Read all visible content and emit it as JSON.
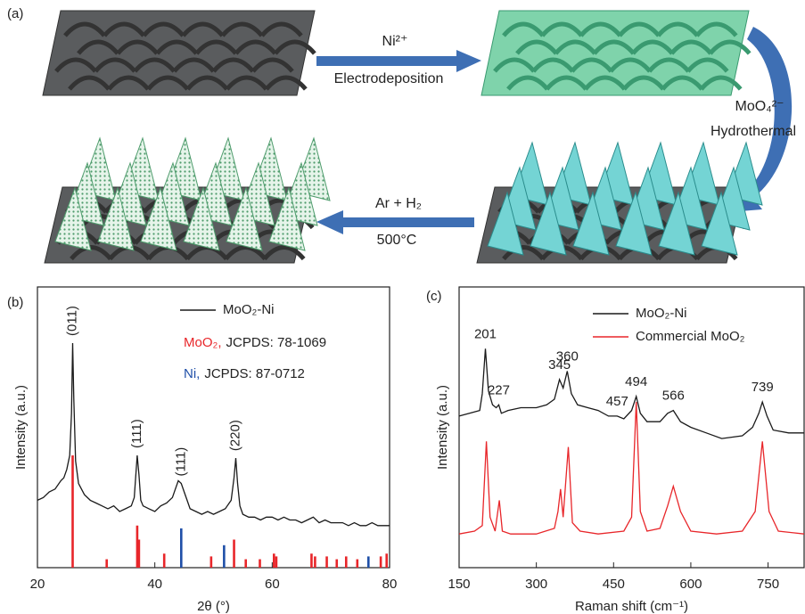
{
  "figure": {
    "panel_a": {
      "label": "(a)",
      "steps": [
        {
          "top": "Ni²⁺",
          "bottom": "Electrodeposition"
        },
        {
          "top": "MoO₄²⁻",
          "bottom": "Hydrothermal"
        },
        {
          "top": "Ar + H₂",
          "bottom": "500°C"
        }
      ]
    }
  },
  "chart_data": [
    {
      "type": "line",
      "panel": "(b)",
      "x_label": "2θ (°)",
      "y_label": "Intensity (a.u.)",
      "xlim": [
        20,
        80
      ],
      "xticks": [
        20,
        40,
        60,
        80
      ],
      "ylim": [
        0,
        100
      ],
      "series": [
        {
          "name": "MoO₂-Ni",
          "color": "#1a1a1a",
          "x": [
            20,
            21,
            22,
            23,
            24,
            24.5,
            25,
            25.5,
            25.8,
            26,
            26.2,
            26.5,
            27,
            28,
            29,
            30,
            31,
            32,
            33,
            34,
            35,
            36,
            36.5,
            37,
            37.3,
            37.6,
            38,
            39,
            40,
            41,
            42,
            43,
            43.5,
            44,
            44.5,
            45,
            45.5,
            46,
            47,
            48,
            49,
            50,
            51,
            52,
            53,
            53.5,
            53.8,
            54.1,
            54.5,
            55,
            56,
            57,
            58,
            59,
            60,
            61,
            62,
            63,
            64,
            65,
            66,
            67,
            68,
            69,
            70,
            71,
            72,
            73,
            74,
            75,
            76,
            77,
            78,
            79,
            80
          ],
          "values": [
            24,
            25,
            27,
            28,
            31,
            32,
            35,
            40,
            55,
            80,
            60,
            38,
            30,
            26,
            24,
            23,
            22,
            21,
            22,
            20,
            21,
            22,
            25,
            40,
            33,
            24,
            22,
            21,
            20,
            22,
            23,
            25,
            28,
            31,
            30,
            27,
            24,
            21,
            20,
            19,
            20,
            19,
            20,
            21,
            24,
            32,
            39,
            30,
            22,
            19,
            18,
            18,
            17,
            18,
            18,
            17,
            18,
            17,
            17,
            16,
            17,
            18,
            16,
            17,
            16,
            16,
            16,
            15,
            16,
            15,
            15,
            16,
            15,
            15,
            15
          ]
        }
      ],
      "references": [
        {
          "name": "MoO₂,",
          "label": "JCPDS: 78-1069",
          "color": "#e8262a",
          "x": [
            26,
            31.8,
            37,
            37.3,
            41.6,
            49.6,
            53.5,
            55.5,
            57.9,
            60.3,
            60.7,
            66.7,
            67.3,
            69.3,
            71,
            72.6,
            74.5,
            78.5,
            79.5
          ],
          "values": [
            40,
            3,
            15,
            10,
            5,
            4,
            10,
            3,
            3,
            5,
            4,
            5,
            4,
            4,
            3,
            4,
            3,
            4,
            5
          ]
        },
        {
          "name": "Ni,",
          "label": "JCPDS: 87-0712",
          "color": "#1f4fa8",
          "x": [
            44.5,
            51.8,
            76.4
          ],
          "values": [
            14,
            8,
            4
          ]
        }
      ],
      "annotations": [
        {
          "text": "(011)",
          "x": 26,
          "color": "#e8262a"
        },
        {
          "text": "(111)",
          "x": 37,
          "color": "#e8262a"
        },
        {
          "text": "(111)",
          "x": 44.5,
          "color": "#1f4fa8"
        },
        {
          "text": "(220)",
          "x": 53.8,
          "color": "#e8262a"
        }
      ]
    },
    {
      "type": "line",
      "panel": "(c)",
      "x_label": "Raman shift (cm⁻¹)",
      "y_label": "Intensity (a.u.)",
      "xlim": [
        150,
        820
      ],
      "xticks": [
        150,
        300,
        450,
        600,
        750
      ],
      "ylim": [
        0,
        100
      ],
      "series": [
        {
          "name": "MoO₂-Ni",
          "color": "#1a1a1a",
          "x": [
            150,
            170,
            190,
            195,
            201,
            207,
            215,
            222,
            227,
            232,
            245,
            270,
            300,
            320,
            335,
            345,
            352,
            360,
            368,
            380,
            400,
            420,
            440,
            457,
            470,
            485,
            494,
            502,
            515,
            540,
            555,
            566,
            580,
            600,
            630,
            660,
            700,
            720,
            732,
            739,
            748,
            760,
            790,
            820
          ],
          "values": [
            54,
            55,
            56,
            62,
            78,
            63,
            58,
            57,
            58,
            55,
            56,
            57,
            57,
            58,
            60,
            67,
            64,
            70,
            62,
            58,
            57,
            56,
            54,
            54,
            53,
            56,
            61,
            55,
            52,
            52,
            55,
            56,
            52,
            50,
            48,
            46,
            47,
            50,
            55,
            59,
            54,
            49,
            48,
            48
          ]
        },
        {
          "name": "Commercial MoO₂",
          "color": "#e8262a",
          "x": [
            150,
            180,
            195,
            203,
            210,
            220,
            228,
            234,
            250,
            300,
            335,
            342,
            347,
            352,
            362,
            370,
            385,
            420,
            470,
            485,
            494,
            502,
            515,
            540,
            555,
            566,
            580,
            600,
            650,
            700,
            725,
            739,
            752,
            770,
            820
          ],
          "values": [
            12,
            13,
            15,
            45,
            18,
            13,
            24,
            13,
            12,
            12,
            14,
            20,
            28,
            18,
            43,
            16,
            13,
            12,
            13,
            18,
            59,
            20,
            13,
            14,
            22,
            29,
            20,
            13,
            12,
            13,
            20,
            45,
            20,
            13,
            12
          ]
        }
      ],
      "peak_labels": [
        201,
        227,
        345,
        360,
        457,
        494,
        566,
        739
      ],
      "peak_label_color": "#1f4fa8"
    }
  ]
}
